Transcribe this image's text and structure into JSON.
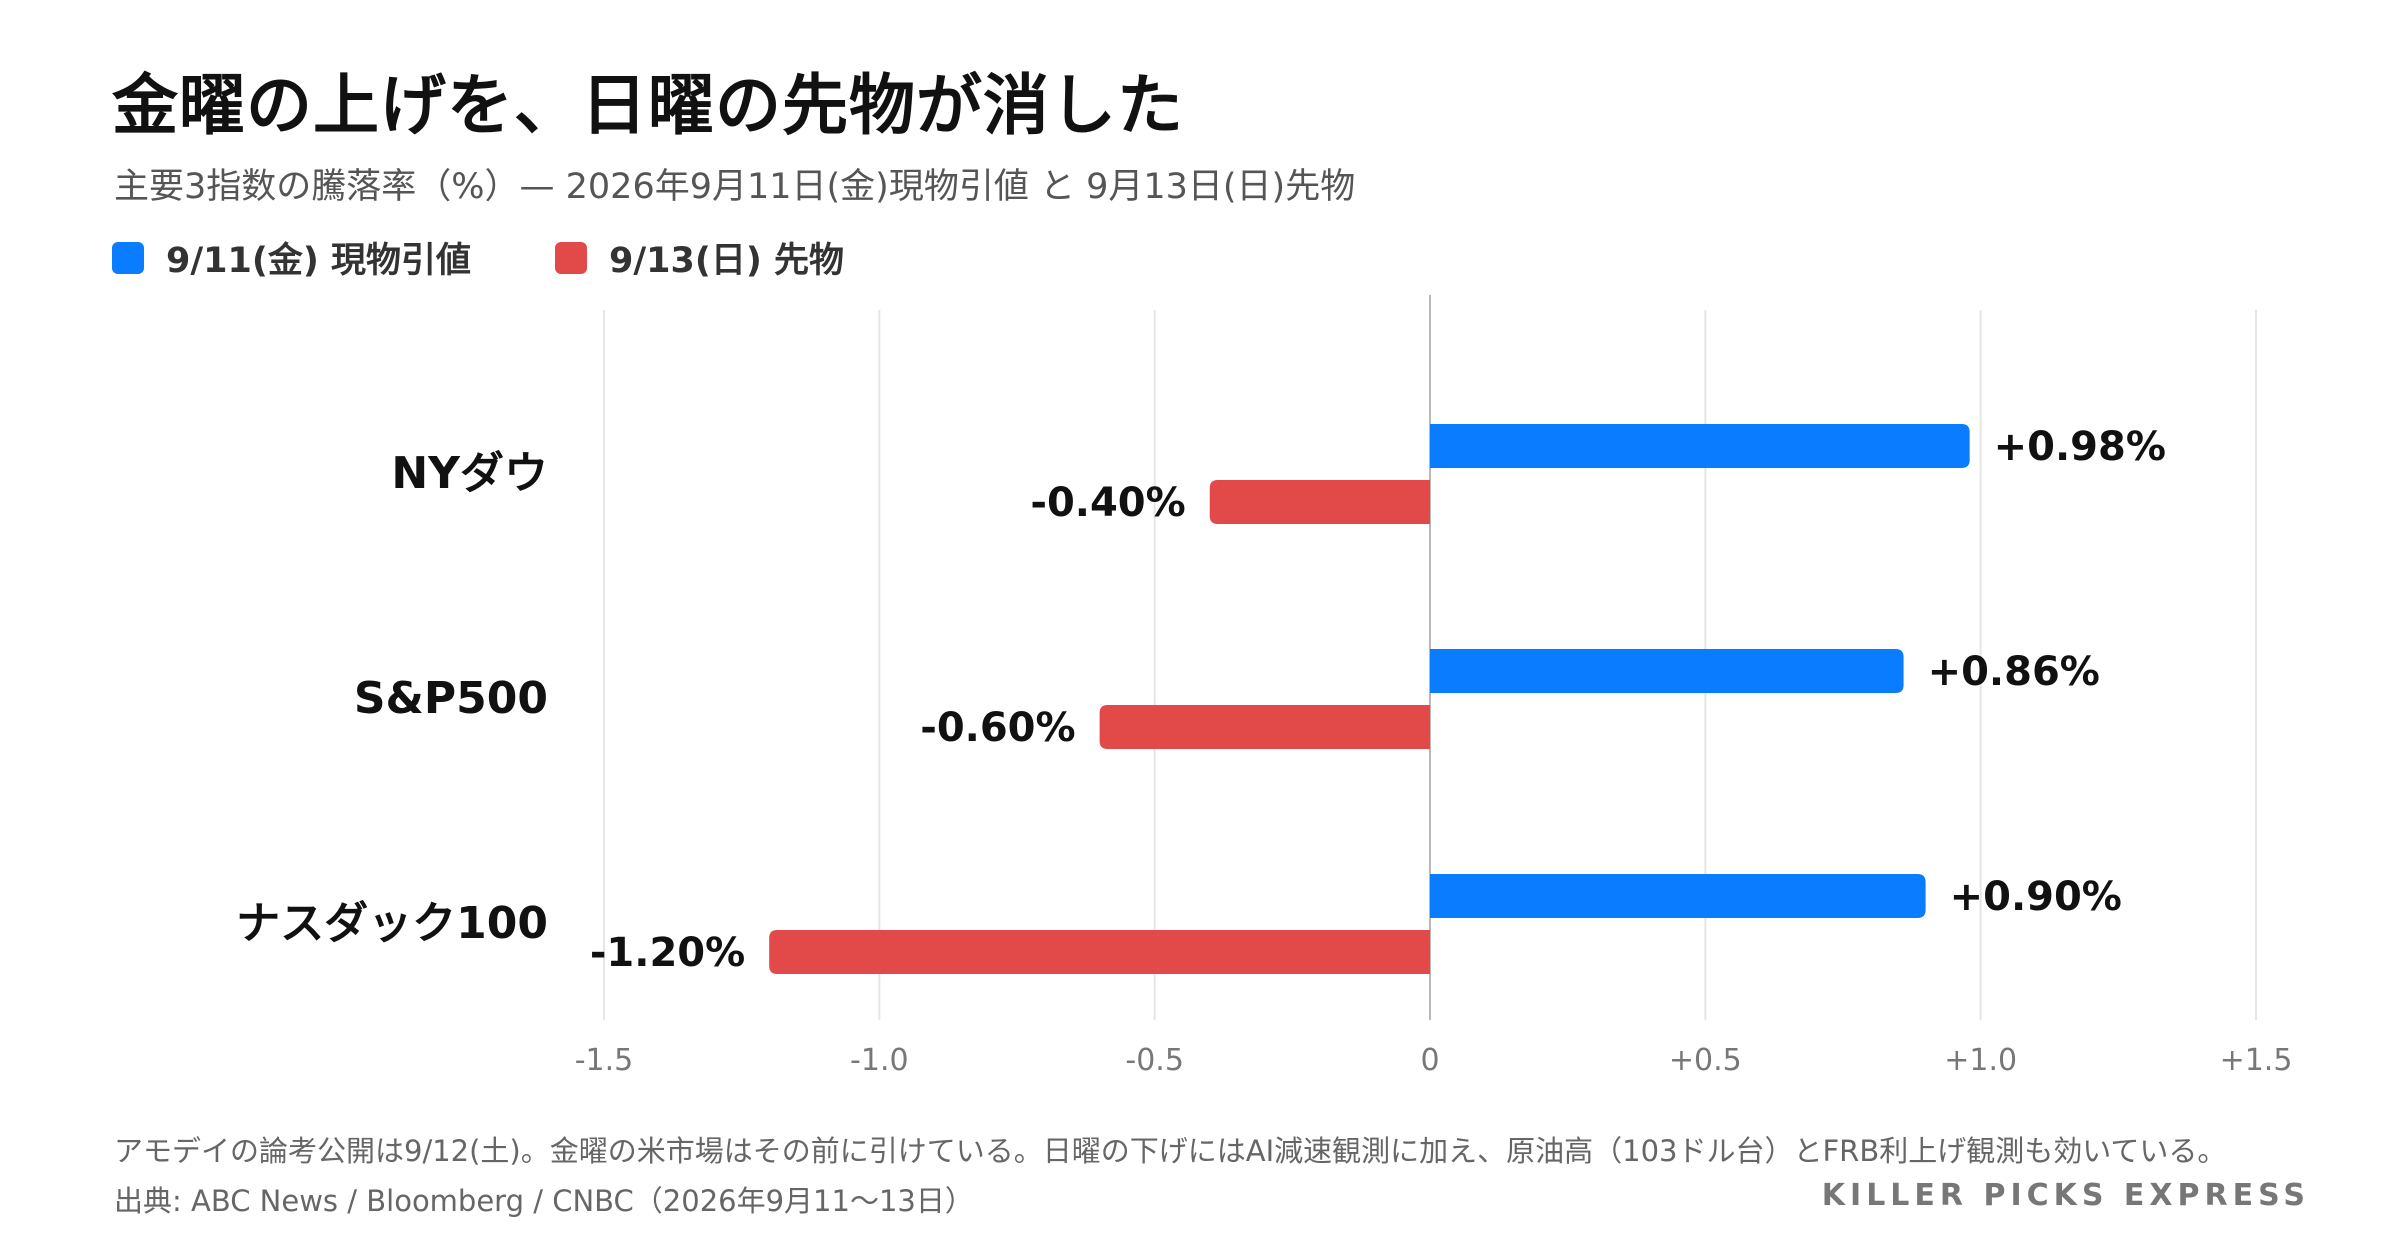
{
  "title": "金曜の上げを、日曜の先物が消した",
  "subtitle": "主要3指数の騰落率（%）— 2026年9月11日(金)現物引値 と 9月13日(日)先物",
  "footer": {
    "note": "アモデイの論考公開は9/12(土)。金曜の米市場はその前に引けている。日曜の下げにはAI減速観測に加え、原油高（103ドル台）とFRB利上げ観測も効いている。",
    "source": "出典: ABC News / Bloomberg / CNBC（2026年9月11〜13日）",
    "brand": "KILLER PICKS EXPRESS"
  },
  "chart_data": {
    "type": "bar",
    "orientation": "horizontal",
    "categories": [
      "NYダウ",
      "S&P500",
      "ナスダック100"
    ],
    "series": [
      {
        "name": "9/11(金) 現物引値",
        "color": "#0a7cff",
        "values": [
          0.98,
          0.86,
          0.9
        ],
        "labels": [
          "+0.98%",
          "+0.86%",
          "+0.90%"
        ]
      },
      {
        "name": "9/13(日) 先物",
        "color": "#e24a4a",
        "values": [
          -0.4,
          -0.6,
          -1.2
        ],
        "labels": [
          "-0.40%",
          "-0.60%",
          "-1.20%"
        ]
      }
    ],
    "xlim": [
      -1.5,
      1.5
    ],
    "xticks": [
      -1.5,
      -1.0,
      -0.5,
      0,
      0.5,
      1.0,
      1.5
    ],
    "xtick_labels": [
      "-1.5",
      "-1.0",
      "-0.5",
      "0",
      "+0.5",
      "+1.0",
      "+1.5"
    ],
    "grid": true,
    "legend_position": "top-left"
  }
}
